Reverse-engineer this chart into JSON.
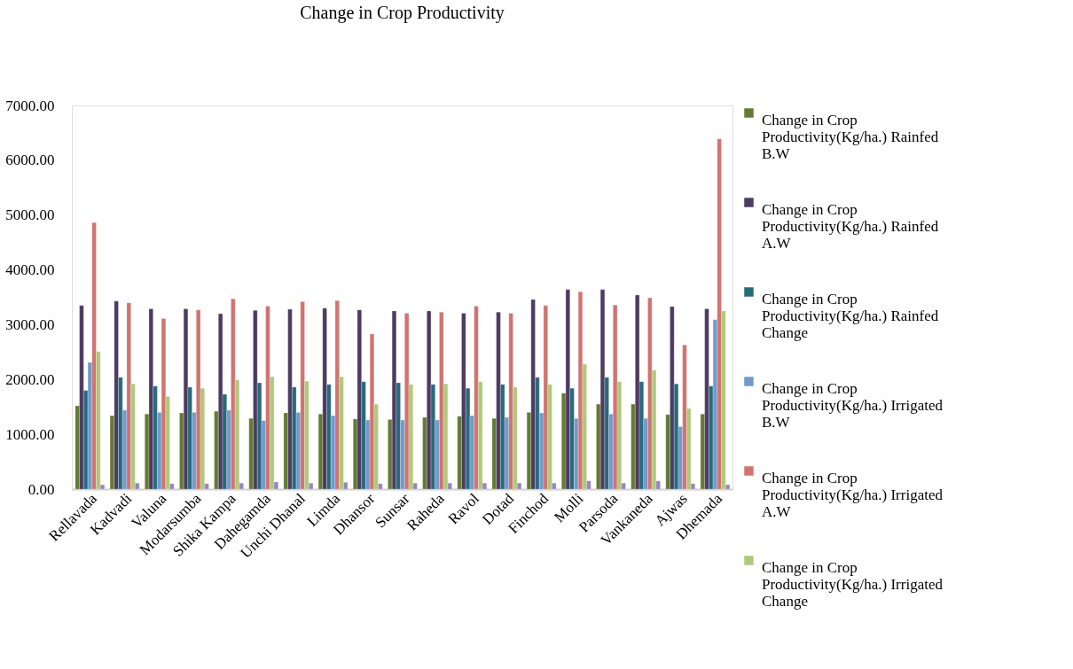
{
  "chart_data": {
    "type": "bar",
    "title": "Change in Crop Productivity",
    "categories": [
      "Rellavada",
      "Kadvadi",
      "Valuna",
      "Modarsumba",
      "Shika Kampa",
      "Dahegamda",
      "Unchi Dhanal",
      "Limda",
      "Dhansor",
      "Sunsar",
      "Raheda",
      "Ravol",
      "Dotad",
      "Finchod",
      "Molli",
      "Parsoda",
      "Vankaneda",
      "Ajwas",
      "Dhemada"
    ],
    "series": [
      {
        "name": "Change in Crop Productivity(Kg/ha.) Rainfed B.W",
        "color": "#637a32",
        "values": [
          1520,
          1340,
          1370,
          1390,
          1420,
          1290,
          1390,
          1370,
          1280,
          1270,
          1310,
          1330,
          1290,
          1400,
          1750,
          1550,
          1550,
          1360,
          1370
        ]
      },
      {
        "name": "Change in Crop Productivity(Kg/ha.) Rainfed A.W",
        "color": "#4e3b62",
        "values": [
          3350,
          3430,
          3290,
          3290,
          3200,
          3260,
          3280,
          3300,
          3270,
          3250,
          3250,
          3210,
          3230,
          3460,
          3640,
          3640,
          3540,
          3330,
          3290
        ]
      },
      {
        "name": "Change in Crop Productivity(Kg/ha.) Rainfed Change",
        "color": "#276a7c",
        "values": [
          1800,
          2040,
          1880,
          1860,
          1730,
          1940,
          1860,
          1910,
          1960,
          1940,
          1910,
          1840,
          1910,
          2040,
          1840,
          2040,
          1960,
          1920,
          1880
        ]
      },
      {
        "name": "Change in Crop Productivity(Kg/ha.) Irrigated B.W",
        "color": "#729aca",
        "values": [
          2310,
          1440,
          1400,
          1400,
          1440,
          1250,
          1400,
          1340,
          1260,
          1260,
          1260,
          1340,
          1310,
          1390,
          1290,
          1370,
          1290,
          1140,
          3090
        ]
      },
      {
        "name": "Change in Crop Productivity(Kg/ha.) Irrigated A.W",
        "color": "#d07470",
        "values": [
          4860,
          3400,
          3110,
          3270,
          3470,
          3340,
          3420,
          3440,
          2830,
          3210,
          3230,
          3340,
          3210,
          3350,
          3600,
          3360,
          3490,
          2630,
          6390
        ]
      },
      {
        "name": "Change in Crop Productivity(Kg/ha.) Irrigated Change",
        "color": "#afc97a",
        "values": [
          2510,
          1920,
          1690,
          1840,
          1990,
          2050,
          1970,
          2050,
          1550,
          1910,
          1920,
          1960,
          1860,
          1910,
          2280,
          1960,
          2170,
          1470,
          3250
        ]
      },
      {
        "color": "#9a84be",
        "values": [
          80,
          110,
          100,
          100,
          110,
          130,
          110,
          125,
          100,
          110,
          110,
          110,
          110,
          110,
          150,
          110,
          150,
          100,
          80
        ]
      }
    ],
    "ylim": [
      0,
      7000
    ],
    "yticks": [
      {
        "value": 0,
        "label": "0.00"
      },
      {
        "value": 1000,
        "label": "1000.00"
      },
      {
        "value": 2000,
        "label": "2000.00"
      },
      {
        "value": 3000,
        "label": "3000.00"
      },
      {
        "value": 4000,
        "label": "4000.00"
      },
      {
        "value": 5000,
        "label": "5000.00"
      },
      {
        "value": 6000,
        "label": "6000.00"
      },
      {
        "value": 7000,
        "label": "7000.00"
      }
    ],
    "grid": false,
    "legend": "right"
  }
}
